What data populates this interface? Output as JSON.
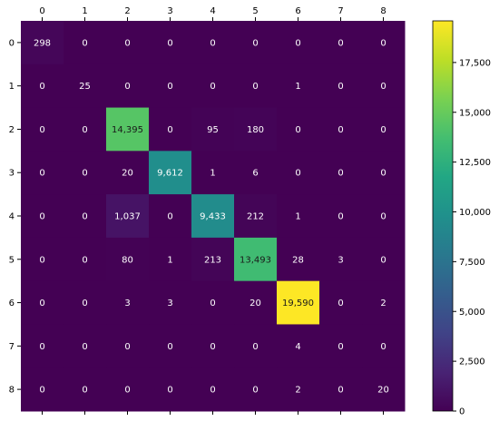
{
  "chart_data": {
    "type": "heatmap",
    "x_labels": [
      "0",
      "1",
      "2",
      "3",
      "4",
      "5",
      "6",
      "7",
      "8"
    ],
    "y_labels": [
      "0",
      "1",
      "2",
      "3",
      "4",
      "5",
      "6",
      "7",
      "8"
    ],
    "values": [
      [
        298,
        0,
        0,
        0,
        0,
        0,
        0,
        0,
        0
      ],
      [
        0,
        25,
        0,
        0,
        0,
        0,
        1,
        0,
        0
      ],
      [
        0,
        0,
        14395,
        0,
        95,
        180,
        0,
        0,
        0
      ],
      [
        0,
        0,
        20,
        9612,
        1,
        6,
        0,
        0,
        0
      ],
      [
        0,
        0,
        1037,
        0,
        9433,
        212,
        1,
        0,
        0
      ],
      [
        0,
        0,
        80,
        1,
        213,
        13493,
        28,
        3,
        0
      ],
      [
        0,
        0,
        3,
        3,
        0,
        20,
        19590,
        0,
        2
      ],
      [
        0,
        0,
        0,
        0,
        0,
        0,
        4,
        0,
        0
      ],
      [
        0,
        0,
        0,
        0,
        0,
        0,
        2,
        0,
        20
      ]
    ],
    "colormap": "viridis",
    "colorbar": {
      "ticks": [
        0,
        2500,
        5000,
        7500,
        10000,
        12500,
        15000,
        17500
      ],
      "tick_labels": [
        "0",
        "2,500",
        "5,000",
        "7,500",
        "10,000",
        "12,500",
        "15,000",
        "17,500"
      ],
      "range": [
        0,
        19590
      ]
    },
    "x_axis_position": "top",
    "grid": false
  }
}
